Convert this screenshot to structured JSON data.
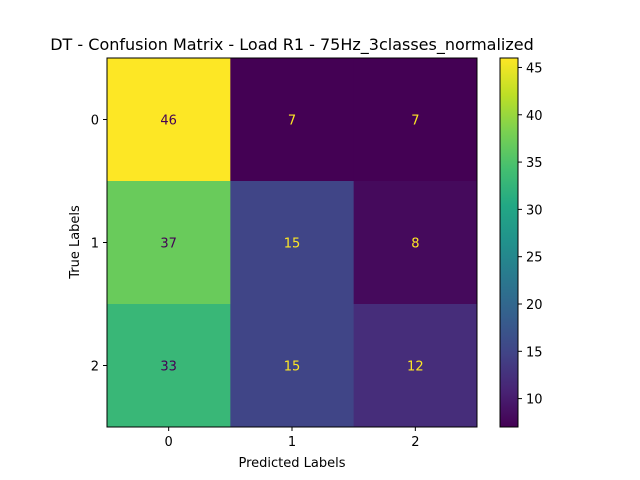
{
  "chart_data": {
    "type": "heatmap",
    "title": "DT - Confusion Matrix - Load R1 - 75Hz_3classes_normalized",
    "xlabel": "Predicted Labels",
    "ylabel": "True Labels",
    "x_categories": [
      "0",
      "1",
      "2"
    ],
    "y_categories": [
      "0",
      "1",
      "2"
    ],
    "matrix": [
      [
        46,
        7,
        7
      ],
      [
        37,
        15,
        8
      ],
      [
        33,
        15,
        12
      ]
    ],
    "colormap": "viridis",
    "colorbar": {
      "range": [
        7,
        46
      ],
      "ticks": [
        10,
        15,
        20,
        25,
        30,
        35,
        40,
        45
      ]
    },
    "text_colors": {
      "dark_cell_text": "#fde725",
      "light_cell_text": "#440154"
    },
    "grid": false
  }
}
